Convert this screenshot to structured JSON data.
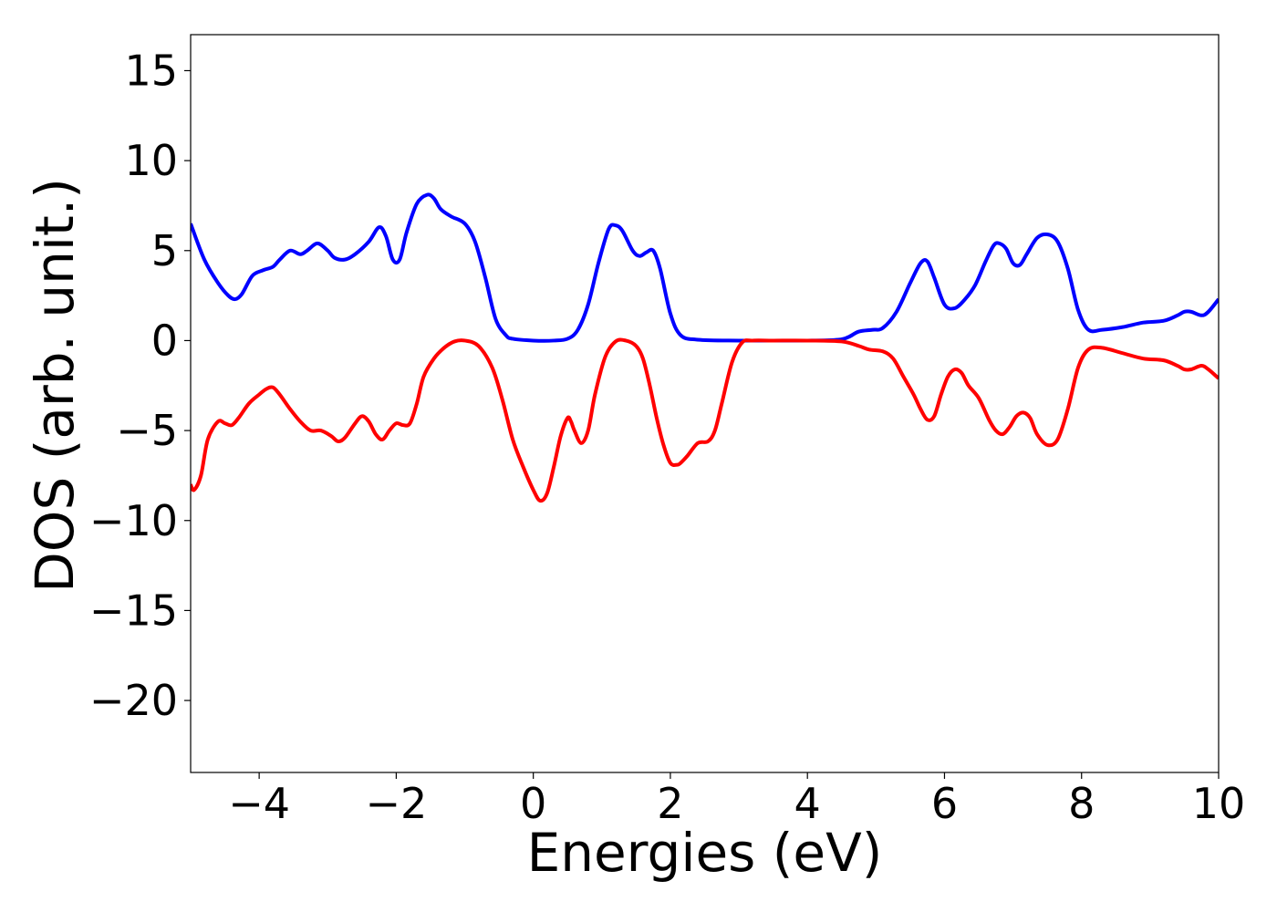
{
  "chart_data": {
    "type": "line",
    "title": "",
    "xlabel": "Energies (eV)",
    "ylabel": "DOS (arb. unit.)",
    "xlim": [
      -5,
      10
    ],
    "ylim": [
      -24,
      17
    ],
    "xticks": [
      -4,
      -2,
      0,
      2,
      4,
      6,
      8,
      10
    ],
    "yticks": [
      -20,
      -15,
      -10,
      -5,
      0,
      5,
      10,
      15
    ],
    "xtick_labels": [
      "−4",
      "−2",
      "0",
      "2",
      "4",
      "6",
      "8",
      "10"
    ],
    "ytick_labels": [
      "−20",
      "−15",
      "−10",
      "−5",
      "0",
      "5",
      "10",
      "15"
    ],
    "grid": false,
    "legend": null,
    "series": [
      {
        "color": "#0000ff",
        "x": [
          -5.0,
          -4.8,
          -4.6,
          -4.45,
          -4.35,
          -4.25,
          -4.1,
          -3.95,
          -3.8,
          -3.7,
          -3.55,
          -3.4,
          -3.3,
          -3.15,
          -3.0,
          -2.9,
          -2.75,
          -2.6,
          -2.4,
          -2.25,
          -2.15,
          -2.05,
          -1.95,
          -1.85,
          -1.7,
          -1.55,
          -1.45,
          -1.35,
          -1.2,
          -1.0,
          -0.85,
          -0.7,
          -0.55,
          -0.4,
          -0.3,
          0.0,
          0.3,
          0.5,
          0.65,
          0.8,
          0.95,
          1.1,
          1.2,
          1.3,
          1.45,
          1.55,
          1.65,
          1.75,
          1.85,
          2.0,
          2.15,
          2.4,
          3.0,
          4.0,
          4.45,
          4.6,
          4.75,
          4.95,
          5.1,
          5.3,
          5.5,
          5.65,
          5.75,
          5.85,
          6.0,
          6.15,
          6.3,
          6.45,
          6.6,
          6.72,
          6.8,
          6.9,
          7.0,
          7.1,
          7.2,
          7.35,
          7.5,
          7.65,
          7.8,
          7.95,
          8.1,
          8.3,
          8.6,
          8.9,
          9.2,
          9.4,
          9.5,
          9.6,
          9.75,
          9.85,
          10.0
        ],
        "values": [
          6.5,
          4.5,
          3.2,
          2.5,
          2.3,
          2.6,
          3.6,
          3.9,
          4.1,
          4.5,
          5.0,
          4.8,
          5.0,
          5.4,
          5.0,
          4.6,
          4.5,
          4.8,
          5.5,
          6.3,
          5.8,
          4.5,
          4.5,
          6.0,
          7.6,
          8.1,
          7.9,
          7.3,
          6.9,
          6.5,
          5.5,
          3.5,
          1.2,
          0.3,
          0.1,
          0.0,
          0.0,
          0.1,
          0.6,
          2.0,
          4.3,
          6.2,
          6.4,
          6.1,
          5.0,
          4.7,
          4.9,
          5.0,
          4.0,
          1.5,
          0.3,
          0.05,
          0.0,
          0.0,
          0.05,
          0.2,
          0.5,
          0.6,
          0.7,
          1.6,
          3.2,
          4.3,
          4.4,
          3.5,
          2.0,
          1.8,
          2.3,
          3.1,
          4.4,
          5.3,
          5.4,
          5.1,
          4.3,
          4.2,
          4.8,
          5.7,
          5.9,
          5.5,
          4.0,
          1.7,
          0.6,
          0.6,
          0.75,
          1.0,
          1.1,
          1.4,
          1.6,
          1.6,
          1.4,
          1.6,
          2.3
        ]
      },
      {
        "color": "#ff0000",
        "x": [
          -5.0,
          -4.95,
          -4.85,
          -4.75,
          -4.6,
          -4.5,
          -4.4,
          -4.3,
          -4.15,
          -4.0,
          -3.9,
          -3.8,
          -3.7,
          -3.55,
          -3.4,
          -3.25,
          -3.1,
          -2.95,
          -2.85,
          -2.75,
          -2.6,
          -2.5,
          -2.4,
          -2.3,
          -2.2,
          -2.1,
          -2.0,
          -1.9,
          -1.8,
          -1.7,
          -1.6,
          -1.45,
          -1.3,
          -1.15,
          -1.0,
          -0.8,
          -0.6,
          -0.45,
          -0.3,
          -0.15,
          0.0,
          0.1,
          0.2,
          0.3,
          0.4,
          0.5,
          0.55,
          0.6,
          0.7,
          0.8,
          0.9,
          1.05,
          1.2,
          1.35,
          1.5,
          1.6,
          1.7,
          1.8,
          1.9,
          2.0,
          2.1,
          2.15,
          2.25,
          2.4,
          2.55,
          2.65,
          2.75,
          2.9,
          3.05,
          3.2,
          3.5,
          4.0,
          4.5,
          4.75,
          4.9,
          5.1,
          5.25,
          5.4,
          5.55,
          5.65,
          5.75,
          5.85,
          5.95,
          6.05,
          6.15,
          6.25,
          6.35,
          6.5,
          6.65,
          6.75,
          6.85,
          6.95,
          7.05,
          7.15,
          7.25,
          7.35,
          7.5,
          7.65,
          7.8,
          7.95,
          8.1,
          8.3,
          8.6,
          8.9,
          9.2,
          9.4,
          9.5,
          9.6,
          9.75,
          9.85,
          10.0
        ],
        "values": [
          -8.0,
          -8.3,
          -7.5,
          -5.5,
          -4.5,
          -4.6,
          -4.7,
          -4.3,
          -3.5,
          -3.0,
          -2.7,
          -2.6,
          -3.0,
          -3.8,
          -4.5,
          -5.0,
          -5.0,
          -5.3,
          -5.6,
          -5.4,
          -4.6,
          -4.2,
          -4.5,
          -5.2,
          -5.5,
          -5.0,
          -4.6,
          -4.7,
          -4.6,
          -3.5,
          -2.0,
          -1.0,
          -0.4,
          -0.05,
          0.0,
          -0.3,
          -1.5,
          -3.3,
          -5.5,
          -7.0,
          -8.3,
          -8.9,
          -8.5,
          -7.0,
          -5.3,
          -4.3,
          -4.5,
          -5.0,
          -5.7,
          -5.0,
          -3.0,
          -0.9,
          -0.05,
          0.0,
          -0.3,
          -1.0,
          -2.5,
          -4.3,
          -5.8,
          -6.8,
          -6.9,
          -6.8,
          -6.4,
          -5.7,
          -5.6,
          -5.0,
          -3.5,
          -1.2,
          -0.1,
          0.0,
          0.0,
          0.0,
          -0.05,
          -0.3,
          -0.5,
          -0.6,
          -1.0,
          -2.0,
          -3.0,
          -3.8,
          -4.4,
          -4.2,
          -3.0,
          -2.0,
          -1.6,
          -1.8,
          -2.5,
          -3.2,
          -4.4,
          -5.0,
          -5.2,
          -4.8,
          -4.2,
          -4.0,
          -4.3,
          -5.2,
          -5.8,
          -5.5,
          -3.8,
          -1.5,
          -0.5,
          -0.4,
          -0.7,
          -1.0,
          -1.1,
          -1.4,
          -1.6,
          -1.6,
          -1.4,
          -1.6,
          -2.1
        ]
      }
    ]
  }
}
